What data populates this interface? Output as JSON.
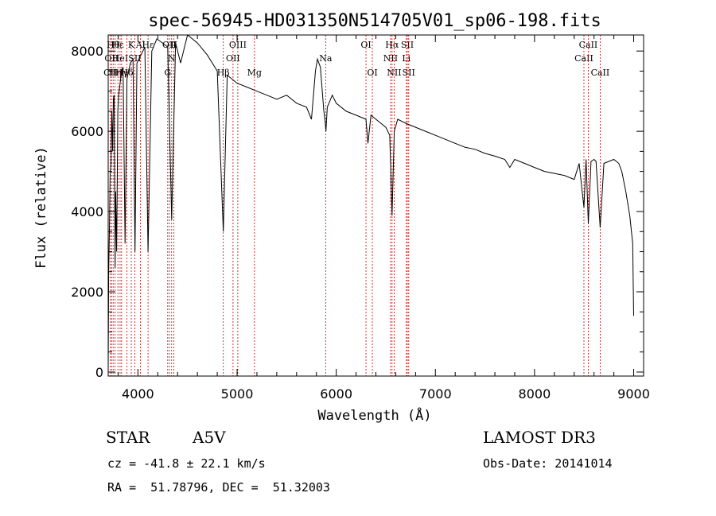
{
  "chart_data": {
    "type": "line",
    "title": "spec-56945-HD031350N514705V01_sp06-198.fits",
    "xlabel": "Wavelength (Å)",
    "ylabel": "Flux (relative)",
    "xlim": [
      3700,
      9100
    ],
    "ylim": [
      -100,
      8400
    ],
    "xticks": [
      4000,
      5000,
      6000,
      7000,
      8000,
      9000
    ],
    "yticks": [
      0,
      2000,
      4000,
      6000,
      8000
    ],
    "series": [
      {
        "name": "flux",
        "x": [
          3700,
          3705,
          3712,
          3720,
          3728,
          3736,
          3745,
          3752,
          3760,
          3770,
          3775,
          3785,
          3797,
          3805,
          3820,
          3835,
          3850,
          3870,
          3889,
          3905,
          3925,
          3950,
          3970,
          3990,
          4030,
          4070,
          4102,
          4140,
          4190,
          4250,
          4300,
          4340,
          4380,
          4430,
          4500,
          4600,
          4700,
          4800,
          4861,
          4900,
          5000,
          5100,
          5200,
          5300,
          5400,
          5500,
          5600,
          5700,
          5750,
          5790,
          5810,
          5840,
          5875,
          5890,
          5896,
          5910,
          5960,
          6000,
          6100,
          6200,
          6300,
          6320,
          6350,
          6400,
          6450,
          6500,
          6540,
          6563,
          6585,
          6620,
          6700,
          6800,
          6900,
          7000,
          7100,
          7200,
          7300,
          7400,
          7500,
          7600,
          7700,
          7750,
          7800,
          7900,
          8000,
          8100,
          8200,
          8300,
          8400,
          8450,
          8498,
          8520,
          8542,
          8570,
          8600,
          8620,
          8662,
          8700,
          8750,
          8800,
          8850,
          8880,
          8920,
          8960,
          8990,
          9000
        ],
        "y": [
          100,
          2500,
          3500,
          5000,
          5200,
          6500,
          5500,
          6800,
          6900,
          2600,
          4500,
          3000,
          6500,
          6900,
          7200,
          7500,
          7600,
          3200,
          7300,
          7500,
          7700,
          7800,
          3000,
          7700,
          7900,
          8100,
          3000,
          8000,
          8300,
          8200,
          8100,
          3800,
          8200,
          7700,
          8400,
          8200,
          7900,
          7500,
          3500,
          7400,
          7200,
          7100,
          7000,
          6900,
          6800,
          6900,
          6700,
          6600,
          6300,
          7500,
          7800,
          7600,
          6500,
          6200,
          6000,
          6600,
          6900,
          6700,
          6500,
          6400,
          6300,
          5700,
          6400,
          6300,
          6200,
          6100,
          5900,
          3900,
          6000,
          6300,
          6200,
          6100,
          6000,
          5900,
          5800,
          5700,
          5600,
          5550,
          5450,
          5380,
          5300,
          5100,
          5300,
          5200,
          5100,
          5000,
          4950,
          4900,
          4800,
          5200,
          4100,
          5300,
          3700,
          5250,
          5300,
          5250,
          3600,
          5200,
          5250,
          5300,
          5200,
          5000,
          4500,
          3900,
          3200,
          1400
        ]
      }
    ],
    "lines": [
      {
        "x": 3722,
        "label": "CII",
        "row": 2
      },
      {
        "x": 3734,
        "label": "OII",
        "row": 1
      },
      {
        "x": 3750,
        "label": "Hθ",
        "row": 0
      },
      {
        "x": 3770,
        "label": "Hη",
        "row": 2
      },
      {
        "x": 3798,
        "label": "Hε",
        "row": 0
      },
      {
        "x": 3820,
        "label": "HeI",
        "row": 1
      },
      {
        "x": 3835,
        "label": "Hγ",
        "row": 2
      },
      {
        "x": 3889,
        "label": "Hδ",
        "row": 2
      },
      {
        "x": 3933,
        "label": "K",
        "row": 0
      },
      {
        "x": 3968,
        "label": "SII",
        "row": 1
      },
      {
        "x": 4026,
        "label": "Al",
        "row": 0
      },
      {
        "x": 4102,
        "label": "Hε",
        "row": 0
      },
      {
        "x": 4300,
        "label": "G",
        "row": 2
      },
      {
        "x": 4317,
        "label": "OII",
        "row": 0
      },
      {
        "x": 4340,
        "label": "N",
        "row": 1
      },
      {
        "x": 4363,
        "label": "II",
        "row": 0
      },
      {
        "x": 4861,
        "label": "Hβ",
        "row": 2
      },
      {
        "x": 4959,
        "label": "OII",
        "row": 1
      },
      {
        "x": 5007,
        "label": "OIII",
        "row": 0
      },
      {
        "x": 5175,
        "label": "Mg",
        "row": 2
      },
      {
        "x": 5893,
        "label": "Na",
        "row": 1
      },
      {
        "x": 6300,
        "label": "OI",
        "row": 0
      },
      {
        "x": 6364,
        "label": "OI",
        "row": 2
      },
      {
        "x": 6548,
        "label": "NII",
        "row": 1
      },
      {
        "x": 6563,
        "label": "Hα",
        "row": 0
      },
      {
        "x": 6584,
        "label": "NII",
        "row": 2
      },
      {
        "x": 6707,
        "label": "Li",
        "row": 1
      },
      {
        "x": 6717,
        "label": "SII",
        "row": 0
      },
      {
        "x": 6731,
        "label": "SII",
        "row": 2
      },
      {
        "x": 8498,
        "label": "CaII",
        "row": 1
      },
      {
        "x": 8542,
        "label": "CaII",
        "row": 0
      },
      {
        "x": 8662,
        "label": "CaII",
        "row": 2
      }
    ]
  },
  "info": {
    "class": "STAR",
    "subclass": "A5V",
    "survey": "LAMOST DR3",
    "cz": "cz = -41.8 ± 22.1 km/s",
    "obs_date": "Obs-Date: 20141014",
    "coords": "RA =  51.78796, DEC =  51.32003"
  },
  "colors": {
    "line_marker": "#cc0000",
    "spectrum": "#000000"
  }
}
